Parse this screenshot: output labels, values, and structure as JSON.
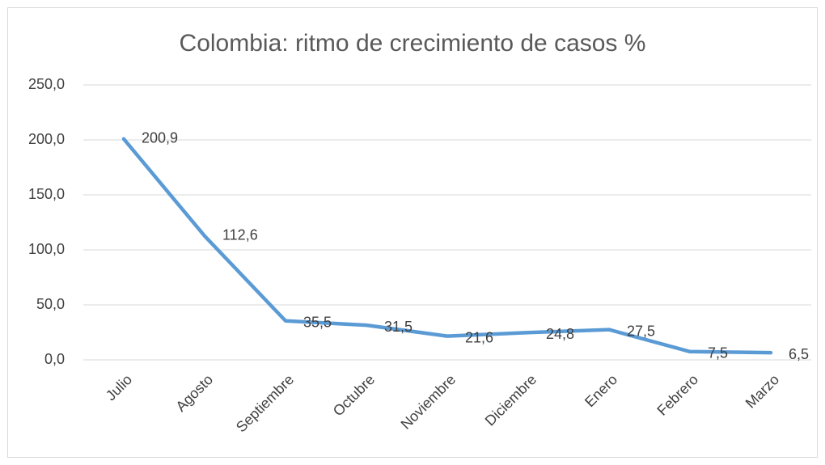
{
  "chart_data": {
    "type": "line",
    "title": "Colombia: ritmo de crecimiento de casos %",
    "categories": [
      "Julio",
      "Agosto",
      "Septiembre",
      "Octubre",
      "Noviembre",
      "Diciembre",
      "Enero",
      "Febrero",
      "Marzo"
    ],
    "series": [
      {
        "name": "Colombia",
        "color": "#5b9bd5",
        "values": [
          200.9,
          112.6,
          35.5,
          31.5,
          21.6,
          24.8,
          27.5,
          7.5,
          6.5
        ],
        "value_labels": [
          "200,9",
          "112,6",
          "35,5",
          "31,5",
          "21,6",
          "24,8",
          "27,5",
          "7,5",
          "6,5"
        ]
      }
    ],
    "ylim": [
      0,
      250
    ],
    "yticks": [
      {
        "value": 0,
        "label": "0,0"
      },
      {
        "value": 50,
        "label": "50,0"
      },
      {
        "value": 100,
        "label": "100,0"
      },
      {
        "value": 150,
        "label": "150,0"
      },
      {
        "value": 200,
        "label": "200,0"
      },
      {
        "value": 250,
        "label": "250,0"
      }
    ],
    "grid": true
  }
}
